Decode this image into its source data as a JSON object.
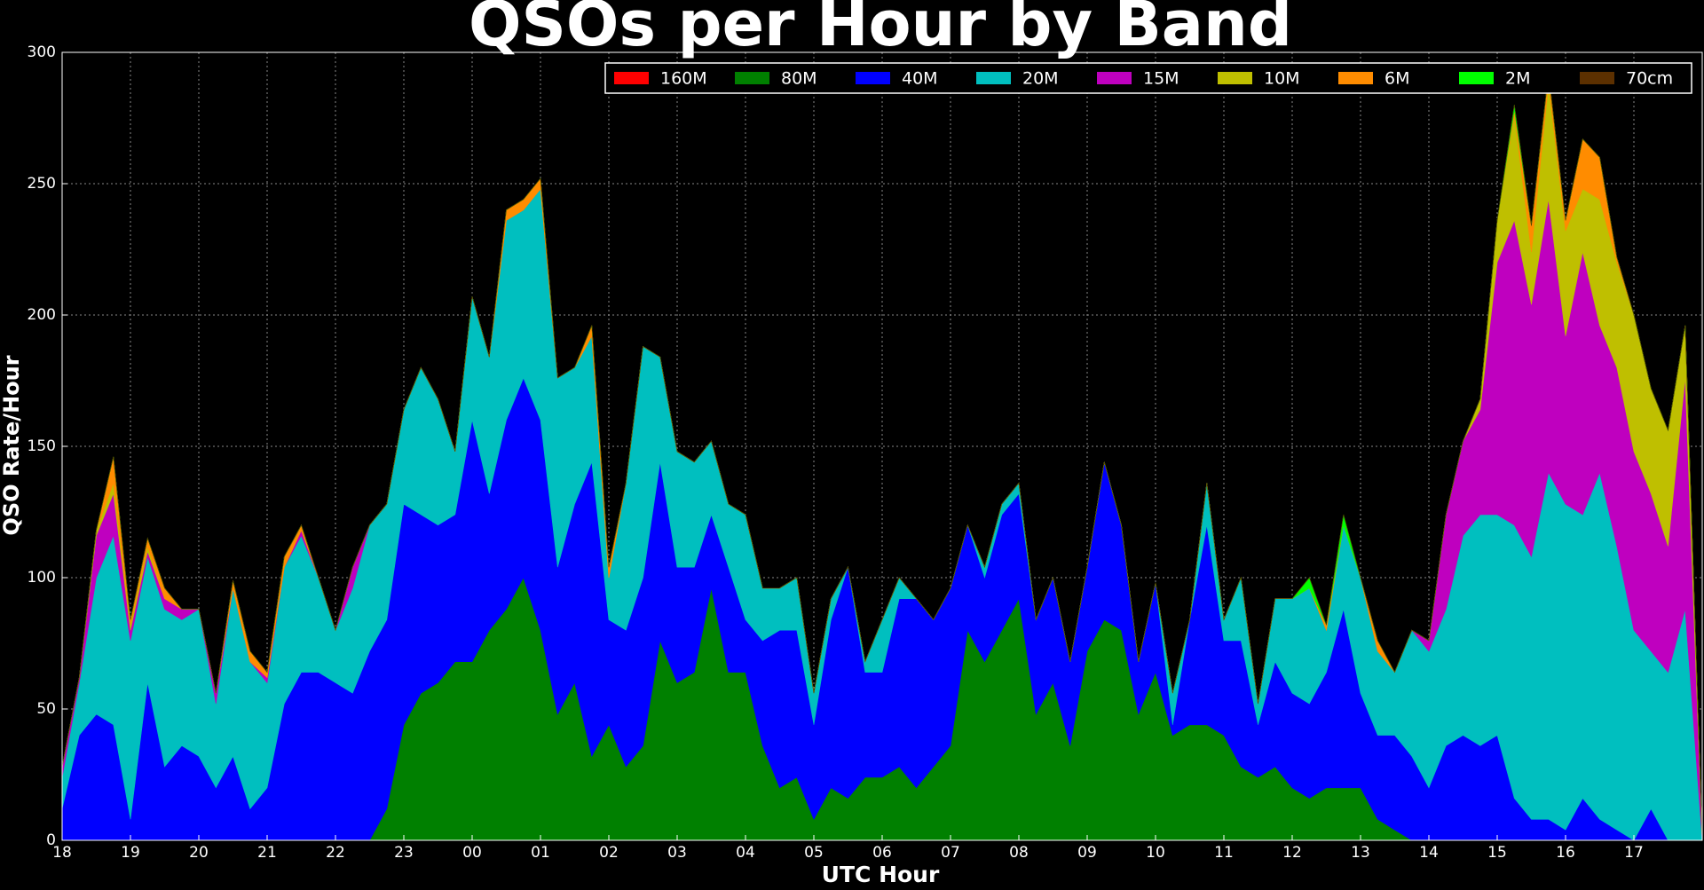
{
  "chart_data": {
    "type": "stacked-area",
    "title": "QSOs per Hour by Band",
    "x_label": "UTC Hour",
    "y_label": "QSO Rate/Hour",
    "xlim": [
      0,
      24
    ],
    "ylim": [
      0,
      300
    ],
    "xticks": [
      {
        "value": 0,
        "label": "18"
      },
      {
        "value": 1,
        "label": "19"
      },
      {
        "value": 2,
        "label": "20"
      },
      {
        "value": 3,
        "label": "21"
      },
      {
        "value": 4,
        "label": "22"
      },
      {
        "value": 5,
        "label": "23"
      },
      {
        "value": 6,
        "label": "00"
      },
      {
        "value": 7,
        "label": "01"
      },
      {
        "value": 8,
        "label": "02"
      },
      {
        "value": 9,
        "label": "03"
      },
      {
        "value": 10,
        "label": "04"
      },
      {
        "value": 11,
        "label": "05"
      },
      {
        "value": 12,
        "label": "06"
      },
      {
        "value": 13,
        "label": "07"
      },
      {
        "value": 14,
        "label": "08"
      },
      {
        "value": 15,
        "label": "09"
      },
      {
        "value": 16,
        "label": "10"
      },
      {
        "value": 17,
        "label": "11"
      },
      {
        "value": 18,
        "label": "12"
      },
      {
        "value": 19,
        "label": "13"
      },
      {
        "value": 20,
        "label": "14"
      },
      {
        "value": 21,
        "label": "15"
      },
      {
        "value": 22,
        "label": "16"
      },
      {
        "value": 23,
        "label": "17"
      }
    ],
    "yticks": [
      0,
      50,
      100,
      150,
      200,
      250,
      300
    ],
    "grid": true,
    "legend": "upper right",
    "x": [
      0,
      0.25,
      0.5,
      0.75,
      1,
      1.25,
      1.5,
      1.75,
      2,
      2.25,
      2.5,
      2.75,
      3,
      3.25,
      3.5,
      3.75,
      4,
      4.25,
      4.5,
      4.75,
      5,
      5.25,
      5.5,
      5.75,
      6,
      6.25,
      6.5,
      6.75,
      7,
      7.25,
      7.5,
      7.75,
      8,
      8.25,
      8.5,
      8.75,
      9,
      9.25,
      9.5,
      9.75,
      10,
      10.25,
      10.5,
      10.75,
      11,
      11.25,
      11.5,
      11.75,
      12,
      12.25,
      12.5,
      12.75,
      13,
      13.25,
      13.5,
      13.75,
      14,
      14.25,
      14.5,
      14.75,
      15,
      15.25,
      15.5,
      15.75,
      16,
      16.25,
      16.5,
      16.75,
      17,
      17.25,
      17.5,
      17.75,
      18,
      18.25,
      18.5,
      18.75,
      19,
      19.25,
      19.5,
      19.75,
      20,
      20.25,
      20.5,
      20.75,
      21,
      21.25,
      21.5,
      21.75,
      22,
      22.25,
      22.5,
      22.75,
      23,
      23.25,
      23.5,
      23.75,
      24
    ],
    "series": [
      {
        "name": "160M",
        "color": "#ff0000",
        "values": [
          0,
          0,
          0,
          0,
          0,
          0,
          0,
          0,
          0,
          0,
          0,
          0,
          0,
          0,
          0,
          0,
          0,
          0,
          0,
          0,
          0,
          0,
          0,
          0,
          0,
          0,
          0,
          0,
          0,
          0,
          0,
          0,
          0,
          0,
          0,
          0,
          0,
          0,
          0,
          0,
          0,
          0,
          0,
          0,
          0,
          0,
          0,
          0,
          0,
          0,
          0,
          0,
          0,
          0,
          0,
          0,
          0,
          0,
          0,
          0,
          0,
          0,
          0,
          0,
          0,
          0,
          0,
          0,
          0,
          0,
          0,
          0,
          0,
          0,
          0,
          0,
          0,
          0,
          0,
          0,
          0,
          0,
          0,
          0,
          0,
          0,
          0,
          0,
          0,
          0,
          0,
          0,
          0,
          0,
          0,
          0,
          0
        ]
      },
      {
        "name": "80M",
        "color": "#008000",
        "values": [
          0,
          0,
          0,
          0,
          0,
          0,
          0,
          0,
          0,
          0,
          0,
          0,
          0,
          0,
          0,
          0,
          0,
          0,
          0,
          12,
          44,
          56,
          60,
          68,
          68,
          80,
          88,
          100,
          80,
          48,
          60,
          32,
          44,
          28,
          36,
          76,
          60,
          64,
          96,
          64,
          64,
          36,
          20,
          24,
          8,
          20,
          16,
          24,
          24,
          28,
          20,
          28,
          36,
          80,
          68,
          80,
          92,
          48,
          60,
          36,
          72,
          84,
          80,
          48,
          64,
          40,
          44,
          44,
          40,
          28,
          24,
          28,
          20,
          16,
          20,
          20,
          20,
          8,
          4,
          0,
          0,
          0,
          0,
          0,
          0,
          0,
          0,
          0,
          0,
          0,
          0,
          0,
          0,
          0,
          0,
          0,
          0
        ]
      },
      {
        "name": "40M",
        "color": "#0000ff",
        "values": [
          12,
          40,
          48,
          44,
          8,
          60,
          28,
          36,
          32,
          20,
          32,
          12,
          20,
          52,
          64,
          64,
          60,
          56,
          72,
          72,
          84,
          68,
          60,
          56,
          92,
          52,
          72,
          76,
          80,
          56,
          68,
          112,
          40,
          52,
          64,
          68,
          44,
          40,
          28,
          40,
          20,
          40,
          60,
          56,
          36,
          64,
          88,
          40,
          40,
          64,
          72,
          56,
          60,
          40,
          32,
          44,
          40,
          36,
          40,
          32,
          32,
          60,
          40,
          20,
          34,
          4,
          40,
          76,
          36,
          48,
          20,
          40,
          36,
          36,
          44,
          68,
          36,
          32,
          36,
          32,
          20,
          36,
          40,
          36,
          40,
          16,
          8,
          8,
          4,
          16,
          8,
          4,
          0,
          12,
          0,
          0,
          0
        ]
      },
      {
        "name": "20M",
        "color": "#00bfbf",
        "values": [
          12,
          20,
          52,
          72,
          68,
          48,
          60,
          48,
          56,
          32,
          64,
          56,
          40,
          52,
          52,
          36,
          20,
          40,
          48,
          44,
          36,
          56,
          48,
          24,
          47,
          52,
          76,
          64,
          88,
          72,
          52,
          48,
          16,
          56,
          88,
          40,
          44,
          40,
          28,
          24,
          40,
          20,
          16,
          20,
          12,
          8,
          0,
          4,
          20,
          8,
          0,
          0,
          0,
          0,
          4,
          4,
          4,
          0,
          0,
          0,
          0,
          0,
          0,
          0,
          0,
          12,
          0,
          16,
          8,
          24,
          8,
          24,
          36,
          44,
          16,
          32,
          44,
          32,
          24,
          48,
          52,
          52,
          76,
          88,
          84,
          104,
          100,
          132,
          124,
          108,
          132,
          108,
          80,
          60,
          64,
          88,
          0
        ]
      },
      {
        "name": "15M",
        "color": "#bf00bf",
        "values": [
          4,
          2,
          16,
          16,
          4,
          2,
          4,
          4,
          0,
          4,
          0,
          0,
          2,
          0,
          2,
          0,
          0,
          8,
          0,
          0,
          0,
          0,
          0,
          0,
          0,
          0,
          0,
          0,
          0,
          0,
          0,
          0,
          0,
          0,
          0,
          0,
          0,
          0,
          0,
          0,
          0,
          0,
          0,
          0,
          0,
          0,
          0,
          0,
          0,
          0,
          0,
          0,
          0,
          0,
          0,
          0,
          0,
          0,
          0,
          0,
          0,
          0,
          0,
          0,
          0,
          0,
          0,
          0,
          0,
          0,
          0,
          0,
          0,
          0,
          0,
          0,
          0,
          0,
          0,
          0,
          4,
          36,
          36,
          40,
          96,
          116,
          96,
          104,
          64,
          100,
          56,
          68,
          68,
          60,
          48,
          88,
          0
        ]
      },
      {
        "name": "10M",
        "color": "#bfbf00",
        "values": [
          0,
          0,
          2,
          4,
          2,
          2,
          0,
          0,
          0,
          0,
          0,
          0,
          0,
          0,
          0,
          0,
          0,
          0,
          0,
          0,
          0,
          0,
          0,
          0,
          0,
          0,
          0,
          0,
          0,
          0,
          0,
          0,
          0,
          0,
          0,
          0,
          0,
          0,
          0,
          0,
          0,
          0,
          0,
          0,
          0,
          0,
          0,
          0,
          0,
          0,
          0,
          0,
          0,
          0,
          0,
          0,
          0,
          0,
          0,
          0,
          0,
          0,
          0,
          0,
          0,
          0,
          0,
          0,
          0,
          0,
          0,
          0,
          0,
          0,
          0,
          0,
          0,
          0,
          0,
          0,
          0,
          0,
          0,
          4,
          16,
          40,
          20,
          44,
          40,
          24,
          48,
          40,
          52,
          40,
          44,
          20,
          0
        ]
      },
      {
        "name": "6M",
        "color": "#ff8c00",
        "values": [
          0,
          0,
          0,
          10,
          2,
          3,
          4,
          0,
          0,
          0,
          3,
          4,
          2,
          4,
          2,
          0,
          0,
          0,
          0,
          0,
          0,
          0,
          0,
          0,
          0,
          0,
          4,
          4,
          4,
          0,
          0,
          4,
          4,
          0,
          0,
          0,
          0,
          0,
          0,
          0,
          0,
          0,
          0,
          0,
          0,
          0,
          0,
          0,
          0,
          0,
          0,
          0,
          0,
          0,
          0,
          0,
          0,
          0,
          0,
          0,
          0,
          0,
          0,
          0,
          0,
          0,
          0,
          0,
          0,
          0,
          0,
          0,
          0,
          0,
          2,
          0,
          0,
          4,
          0,
          0,
          0,
          0,
          0,
          0,
          0,
          2,
          10,
          4,
          4,
          19,
          16,
          2,
          0,
          0,
          0,
          0,
          0
        ]
      },
      {
        "name": "2M",
        "color": "#00ff00",
        "values": [
          0,
          0,
          0,
          0,
          0,
          0,
          0,
          0,
          0,
          0,
          0,
          0,
          0,
          0,
          0,
          0,
          0,
          0,
          0,
          0,
          0,
          0,
          0,
          0,
          0,
          0,
          0,
          0,
          0,
          0,
          0,
          0,
          0,
          0,
          0,
          0,
          0,
          0,
          0,
          0,
          0,
          0,
          0,
          0,
          0,
          0,
          0,
          0,
          0,
          0,
          0,
          0,
          0,
          0,
          0,
          0,
          0,
          0,
          0,
          0,
          0,
          0,
          0,
          0,
          0,
          0,
          0,
          0,
          0,
          0,
          0,
          0,
          0,
          4,
          0,
          4,
          0,
          0,
          0,
          0,
          0,
          0,
          0,
          0,
          0,
          2,
          0,
          0,
          0,
          0,
          0,
          0,
          0,
          0,
          0,
          0,
          0
        ]
      },
      {
        "name": "70cm",
        "color": "#5c3000",
        "values": [
          0,
          0,
          0,
          0,
          0,
          0,
          0,
          0,
          0,
          0,
          0,
          0,
          0,
          0,
          0,
          0,
          0,
          0,
          0,
          0,
          0,
          0,
          0,
          0,
          0,
          0,
          0,
          0,
          0,
          0,
          0,
          0,
          0,
          0,
          0,
          0,
          0,
          0,
          0,
          0,
          0,
          0,
          0,
          0,
          0,
          0,
          0,
          0,
          0,
          0,
          0,
          0,
          0,
          0,
          0,
          0,
          0,
          0,
          0,
          0,
          0,
          0,
          0,
          0,
          0,
          0,
          0,
          0,
          0,
          0,
          0,
          0,
          0,
          0,
          0,
          0,
          0,
          0,
          0,
          0,
          0,
          0,
          0,
          0,
          0,
          0,
          0,
          0,
          0,
          0,
          0,
          0,
          0,
          0,
          0,
          0,
          0
        ]
      }
    ]
  }
}
